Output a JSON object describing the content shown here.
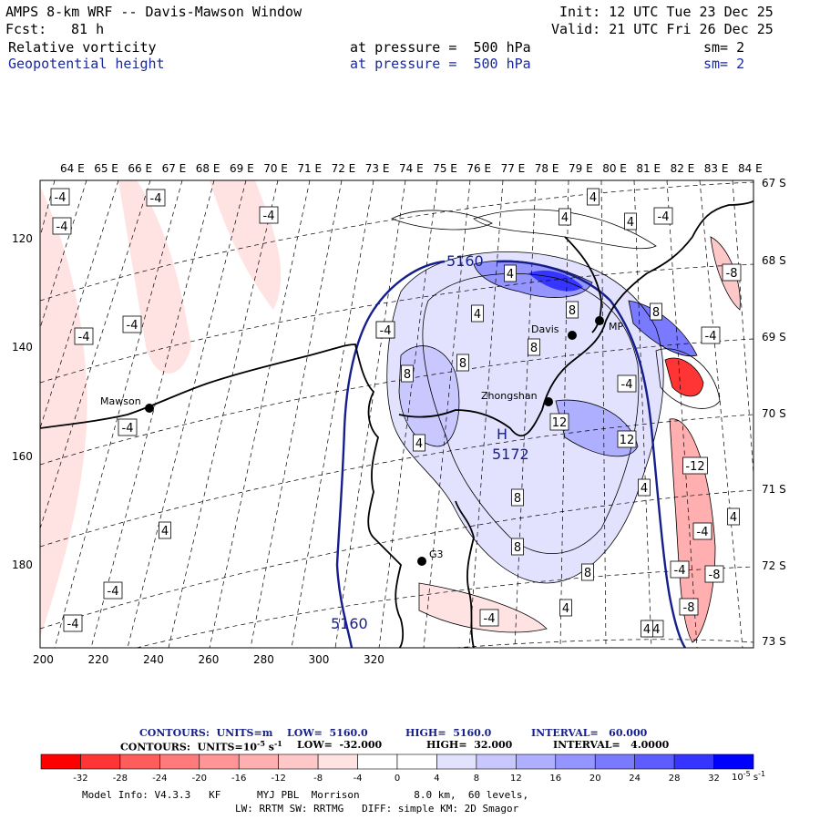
{
  "header": {
    "title": "AMPS 8-km WRF -- Davis-Mawson Window",
    "fcst_label": "Fcst:",
    "fcst_value": "81 h",
    "init": "Init: 12 UTC Tue 23 Dec 25",
    "valid": "Valid: 21 UTC Fri 26 Dec 25",
    "field1": {
      "name": "Relative vorticity",
      "level": "at pressure =  500 hPa",
      "sm": "sm= 2"
    },
    "field2": {
      "name": "Geopotential height",
      "level": "at pressure =  500 hPa",
      "sm": "sm= 2"
    }
  },
  "map": {
    "top_lon_labels": [
      "64 E",
      "65 E",
      "66 E",
      "67 E",
      "68 E",
      "69 E",
      "70 E",
      "71 E",
      "72 E",
      "73 E",
      "74 E",
      "75 E",
      "76 E",
      "77 E",
      "78 E",
      "79 E",
      "80 E",
      "81 E",
      "82 E",
      "83 E",
      "84 E"
    ],
    "right_lat_labels": [
      "67 S",
      "68 S",
      "69 S",
      "70 S",
      "71 S",
      "72 S",
      "73 S"
    ],
    "left_y_labels": [
      "120",
      "140",
      "160",
      "180"
    ],
    "bottom_x_labels": [
      "200",
      "220",
      "240",
      "260",
      "280",
      "300",
      "320"
    ],
    "stations": [
      {
        "name": "Mawson"
      },
      {
        "name": "Davis"
      },
      {
        "name": "Zhongshan"
      },
      {
        "name": "MP"
      },
      {
        "name": "G3"
      }
    ],
    "height_labels": [
      "5160",
      "5160"
    ],
    "high_marker": "H",
    "high_value": "5172",
    "vort_labels": [
      "-4",
      "-4",
      "-4",
      "-4",
      "-4",
      "-4",
      "-4",
      "-4",
      "-4",
      "-4",
      "-4",
      "-4",
      "-4",
      "-4",
      "-4",
      "-4",
      "-4",
      "-4",
      "-8",
      "-8",
      "-8",
      "-12",
      "4",
      "4",
      "4",
      "4",
      "4",
      "4",
      "4",
      "4",
      "4",
      "4",
      "4",
      "8",
      "8",
      "8",
      "8",
      "8",
      "8",
      "8",
      "8",
      "12",
      "12",
      "12"
    ]
  },
  "contours_info": {
    "line1_label": "CONTOURS:  UNITS=m",
    "line1_low": "LOW=  5160.0",
    "line1_high": "HIGH=  5160.0",
    "line1_interval": "INTERVAL=   60.000",
    "line2_label": "CONTOURS:  UNITS=10",
    "line2_exp": "-5",
    "line2_unit": "s",
    "line2_unit_exp": "-1",
    "line2_low": "LOW=  -32.000",
    "line2_high": "HIGH=  32.000",
    "line2_interval": "INTERVAL=   4.0000"
  },
  "colorbar": {
    "ticks": [
      "-32",
      "-28",
      "-24",
      "-20",
      "-16",
      "-12",
      "-8",
      "-4",
      "0",
      "4",
      "8",
      "12",
      "16",
      "20",
      "24",
      "28",
      "32"
    ],
    "unit": "10",
    "unit_exp": "-5",
    "unit_s": "s",
    "unit_s_exp": "-1",
    "colors": [
      "#ff0000",
      "#ff3535",
      "#ff5c5c",
      "#ff7a7a",
      "#ff9595",
      "#ffafaf",
      "#ffc8c8",
      "#ffe2e2",
      "#ffffff",
      "#ffffff",
      "#e2e2ff",
      "#c8c8ff",
      "#afafff",
      "#9595ff",
      "#7a7aff",
      "#5c5cff",
      "#3535ff",
      "#0000ff"
    ]
  },
  "footer": {
    "line1": "Model Info: V4.3.3   KF      MYJ PBL  Morrison         8.0 km,  60 levels,",
    "line2": "LW: RRTM SW: RRTMG   DIFF: simple KM: 2D Smagor"
  }
}
